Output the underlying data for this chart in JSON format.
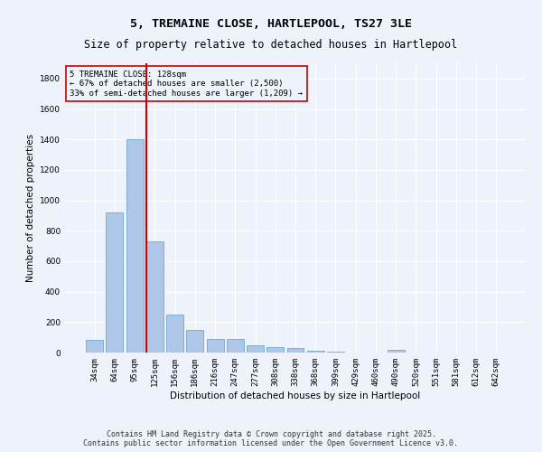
{
  "title_line1": "5, TREMAINE CLOSE, HARTLEPOOL, TS27 3LE",
  "title_line2": "Size of property relative to detached houses in Hartlepool",
  "xlabel": "Distribution of detached houses by size in Hartlepool",
  "ylabel": "Number of detached properties",
  "categories": [
    "34sqm",
    "64sqm",
    "95sqm",
    "125sqm",
    "156sqm",
    "186sqm",
    "216sqm",
    "247sqm",
    "277sqm",
    "308sqm",
    "338sqm",
    "368sqm",
    "399sqm",
    "429sqm",
    "460sqm",
    "490sqm",
    "520sqm",
    "551sqm",
    "581sqm",
    "612sqm",
    "642sqm"
  ],
  "values": [
    85,
    920,
    1400,
    730,
    250,
    150,
    90,
    90,
    50,
    35,
    30,
    10,
    5,
    0,
    0,
    20,
    0,
    0,
    0,
    0,
    0
  ],
  "bar_color": "#aec6e8",
  "bar_edgecolor": "#7bafd4",
  "vline_color": "#cc0000",
  "annotation_text": "5 TREMAINE CLOSE: 128sqm\n← 67% of detached houses are smaller (2,500)\n33% of semi-detached houses are larger (1,209) →",
  "annotation_box_color": "#cc0000",
  "ylim": [
    0,
    1900
  ],
  "yticks": [
    0,
    200,
    400,
    600,
    800,
    1000,
    1200,
    1400,
    1600,
    1800
  ],
  "background_color": "#eef2fb",
  "grid_color": "#ffffff",
  "footer_line1": "Contains HM Land Registry data © Crown copyright and database right 2025.",
  "footer_line2": "Contains public sector information licensed under the Open Government Licence v3.0.",
  "title_fontsize": 9.5,
  "subtitle_fontsize": 8.5,
  "axis_label_fontsize": 7.5,
  "tick_fontsize": 6.5,
  "annotation_fontsize": 6.5,
  "footer_fontsize": 6.0
}
